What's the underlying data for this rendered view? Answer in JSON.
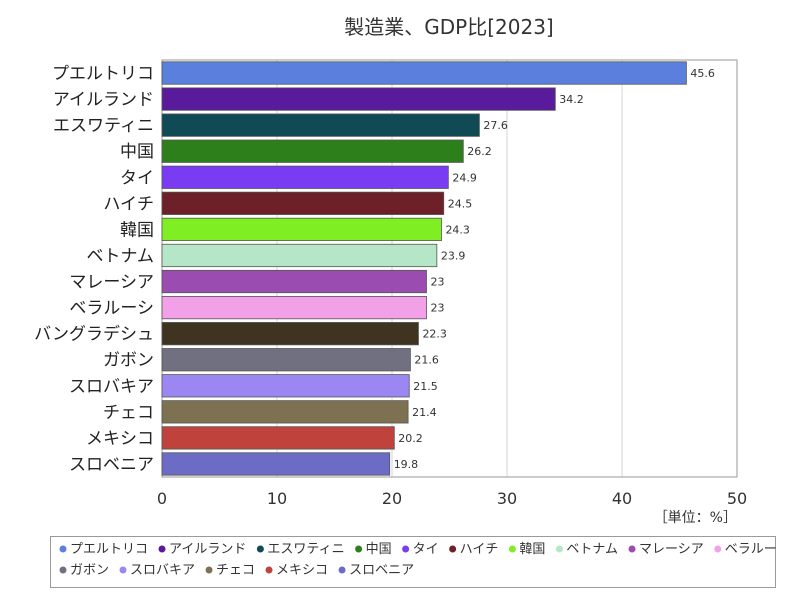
{
  "chart_data": {
    "type": "bar",
    "orientation": "horizontal",
    "title": "製造業、GDP比[2023]",
    "unit_label": "［単位：%］",
    "xlim": [
      0,
      50
    ],
    "xticks": [
      "0",
      "10",
      "20",
      "30",
      "40",
      "50"
    ],
    "grid": true,
    "legend_position": "bottom",
    "categories": [
      "プエルトリコ",
      "アイルランド",
      "エスワティニ",
      "中国",
      "タイ",
      "ハイチ",
      "韓国",
      "ベトナム",
      "マレーシア",
      "ベラルーシ",
      "バングラデシュ",
      "ガボン",
      "スロバキア",
      "チェコ",
      "メキシコ",
      "スロベニア"
    ],
    "values": [
      45.6,
      34.2,
      27.6,
      26.2,
      24.9,
      24.5,
      24.3,
      23.9,
      23,
      23,
      22.3,
      21.6,
      21.5,
      21.4,
      20.2,
      19.8
    ],
    "value_labels": [
      "45.6",
      "34.2",
      "27.6",
      "26.2",
      "24.9",
      "24.5",
      "24.3",
      "23.9",
      "23",
      "23",
      "22.3",
      "21.6",
      "21.5",
      "21.4",
      "20.2",
      "19.8"
    ],
    "colors": [
      "#5b7fdd",
      "#5a1a9c",
      "#0f4a55",
      "#2d7f1c",
      "#7a3cf2",
      "#6e2028",
      "#7fee22",
      "#b6e6c8",
      "#9a4cb0",
      "#f2a0e8",
      "#3f3420",
      "#707080",
      "#9b86f2",
      "#7d7152",
      "#c0423c",
      "#6c6cc6"
    ]
  }
}
